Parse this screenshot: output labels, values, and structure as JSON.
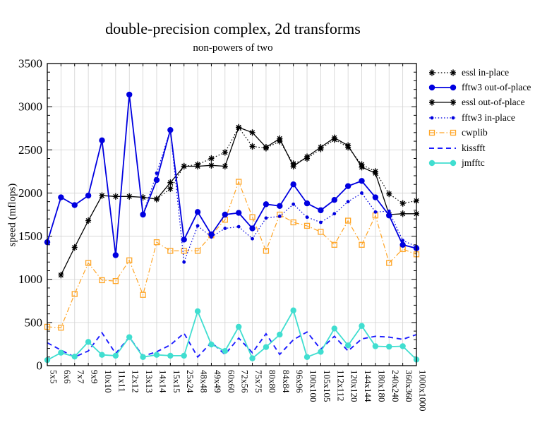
{
  "title": "double-precision complex, 2d transforms",
  "subtitle": "non-powers of two",
  "ylabel": "speed (mflops)",
  "chart_data": {
    "type": "line",
    "title": "double-precision complex, 2d transforms",
    "subtitle": "non-powers of two",
    "xlabel": "",
    "ylabel": "speed (mflops)",
    "ylim": [
      0,
      3500
    ],
    "yticks": [
      0,
      500,
      1000,
      1500,
      2000,
      2500,
      3000,
      3500
    ],
    "y_minor_tick_interval": 100,
    "grid": true,
    "legend_position": "right",
    "x_tick_label_rotation": 90,
    "categories": [
      "5x5",
      "6x6",
      "7x7",
      "9x9",
      "10x10",
      "11x11",
      "12x12",
      "13x13",
      "14x14",
      "15x15",
      "25x24",
      "48x48",
      "49x49",
      "60x60",
      "72x56",
      "75x75",
      "80x80",
      "84x84",
      "96x96",
      "100x100",
      "105x105",
      "112x112",
      "120x120",
      "144x144",
      "180x180",
      "240x240",
      "360x360",
      "1000x1000"
    ],
    "series": [
      {
        "name": "essl in-place",
        "color": "#000000",
        "line": "dotted",
        "marker": "asterisk",
        "values": [
          null,
          null,
          null,
          null,
          null,
          null,
          null,
          null,
          1930,
          2050,
          2310,
          2330,
          2400,
          2470,
          2760,
          2540,
          2520,
          2600,
          2340,
          2400,
          2510,
          2620,
          2530,
          2330,
          2250,
          1990,
          1880,
          1910
        ]
      },
      {
        "name": "fftw3 out-of-place",
        "color": "#0000e0",
        "line": "solid",
        "marker": "circle",
        "values": [
          1430,
          1950,
          1860,
          1970,
          2610,
          1280,
          3140,
          1750,
          2150,
          2730,
          1460,
          1780,
          1520,
          1750,
          1770,
          1590,
          1870,
          1850,
          2100,
          1880,
          1800,
          1920,
          2080,
          2140,
          1950,
          1740,
          1400,
          1360
        ]
      },
      {
        "name": "essl out-of-place",
        "color": "#000000",
        "line": "solid",
        "marker": "asterisk",
        "values": [
          null,
          1050,
          1370,
          1680,
          1970,
          1960,
          1960,
          1950,
          1930,
          2120,
          2310,
          2310,
          2320,
          2310,
          2760,
          2700,
          2530,
          2630,
          2310,
          2420,
          2530,
          2640,
          2550,
          2300,
          2230,
          1750,
          1760,
          1760
        ]
      },
      {
        "name": "fftw3 in-place",
        "color": "#0000e0",
        "line": "dotted",
        "marker": "dot",
        "values": [
          1430,
          1950,
          1860,
          1970,
          2610,
          1280,
          3140,
          1750,
          2230,
          2730,
          1200,
          1620,
          1490,
          1590,
          1610,
          1470,
          1710,
          1730,
          1870,
          1720,
          1660,
          1760,
          1900,
          2000,
          1780,
          1790,
          1450,
          1380
        ]
      },
      {
        "name": "cwplib",
        "color": "#ffa526",
        "line": "dashdot",
        "marker": "square-open",
        "values": [
          450,
          440,
          830,
          1190,
          990,
          980,
          1220,
          820,
          1430,
          1330,
          1330,
          1330,
          1510,
          1690,
          2130,
          1720,
          1330,
          1750,
          1660,
          1620,
          1550,
          1400,
          1680,
          1400,
          1740,
          1190,
          1350,
          1290
        ]
      },
      {
        "name": "kissfft",
        "color": "#1c1cff",
        "line": "dashed",
        "marker": "none",
        "values": [
          265,
          180,
          100,
          170,
          380,
          140,
          330,
          110,
          160,
          240,
          375,
          100,
          270,
          130,
          320,
          150,
          370,
          130,
          300,
          390,
          190,
          340,
          170,
          310,
          340,
          330,
          305,
          360
        ]
      },
      {
        "name": "jmfftc",
        "color": "#40ded0",
        "line": "solid",
        "marker": "circle",
        "values": [
          65,
          150,
          105,
          275,
          125,
          115,
          330,
          100,
          125,
          115,
          115,
          630,
          245,
          170,
          450,
          85,
          215,
          360,
          640,
          100,
          160,
          430,
          235,
          460,
          225,
          220,
          225,
          70
        ]
      }
    ]
  }
}
